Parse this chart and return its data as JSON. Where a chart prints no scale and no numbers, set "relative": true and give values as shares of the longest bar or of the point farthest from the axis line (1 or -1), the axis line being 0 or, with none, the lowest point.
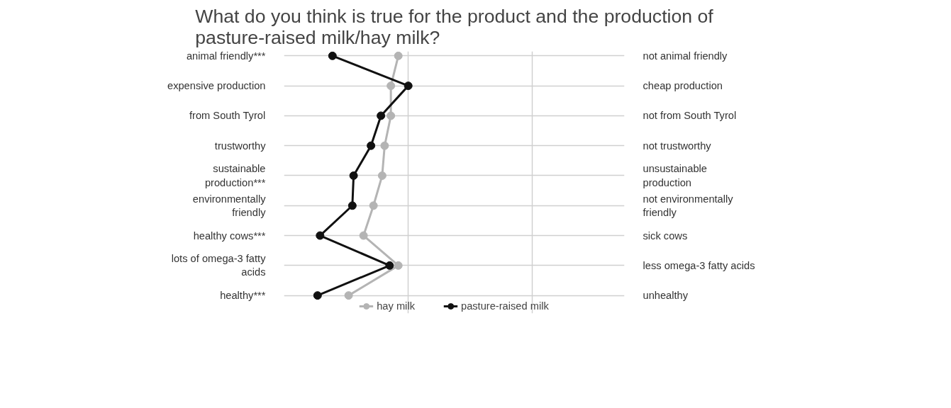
{
  "chart_data": {
    "type": "line",
    "orientation": "horizontal",
    "relative": true,
    "title": "What do you think is true for the product and the production of\npasture-raised milk/hay milk?",
    "categories": [
      "animal friendly***",
      "expensive production",
      "from South Tyrol",
      "trustworthy",
      "sustainable\nproduction***",
      "environmentally\nfriendly",
      "healthy cows***",
      "lots of omega-3 fatty\nacids",
      "healthy***"
    ],
    "y2_categories": [
      "not animal friendly",
      "cheap production",
      "not from South Tyrol",
      "not trustworthy",
      "unsustainable\nproduction",
      "not environmentally\nfriendly",
      "sick cows",
      "less omega-3 fatty acids",
      "unhealthy"
    ],
    "series": [
      {
        "name": "hay milk",
        "color": "#b4b4b4",
        "values": [
          0.92,
          0.86,
          0.86,
          0.81,
          0.79,
          0.72,
          0.64,
          0.92,
          0.52
        ]
      },
      {
        "name": "pasture-raised milk",
        "color": "#111111",
        "values": [
          0.39,
          1,
          0.78,
          0.7,
          0.56,
          0.55,
          0.29,
          0.85,
          0.27
        ]
      }
    ],
    "marker": "circle",
    "line_style": "solid",
    "grid": true,
    "legend": "bottom"
  }
}
